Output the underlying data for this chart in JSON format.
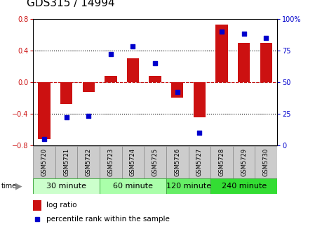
{
  "title": "GDS315 / 14994",
  "samples": [
    "GSM5720",
    "GSM5721",
    "GSM5722",
    "GSM5723",
    "GSM5724",
    "GSM5725",
    "GSM5726",
    "GSM5727",
    "GSM5728",
    "GSM5729",
    "GSM5730"
  ],
  "log_ratio": [
    -0.72,
    -0.28,
    -0.13,
    0.08,
    0.3,
    0.08,
    -0.2,
    -0.45,
    0.73,
    0.5,
    0.5
  ],
  "percentile": [
    5,
    22,
    23,
    72,
    78,
    65,
    42,
    10,
    90,
    88,
    85
  ],
  "groups": [
    {
      "label": "30 minute",
      "start": 0,
      "end": 2,
      "color": "#ccffcc"
    },
    {
      "label": "60 minute",
      "start": 3,
      "end": 5,
      "color": "#aaffaa"
    },
    {
      "label": "120 minute",
      "start": 6,
      "end": 7,
      "color": "#66ee66"
    },
    {
      "label": "240 minute",
      "start": 8,
      "end": 10,
      "color": "#33dd33"
    }
  ],
  "bar_color": "#cc1111",
  "dot_color": "#0000cc",
  "ylim_left": [
    -0.8,
    0.8
  ],
  "ylim_right": [
    0,
    100
  ],
  "yticks_left": [
    -0.8,
    -0.4,
    0.0,
    0.4,
    0.8
  ],
  "yticks_right": [
    0,
    25,
    50,
    75,
    100
  ],
  "hlines_dotted": [
    -0.4,
    0.4
  ],
  "hline_red_dash": 0.0,
  "hline_black_dot": 0.0,
  "title_fontsize": 11,
  "tick_fontsize": 7,
  "sample_fontsize": 6,
  "group_fontsize": 8,
  "legend_fontsize": 7.5
}
